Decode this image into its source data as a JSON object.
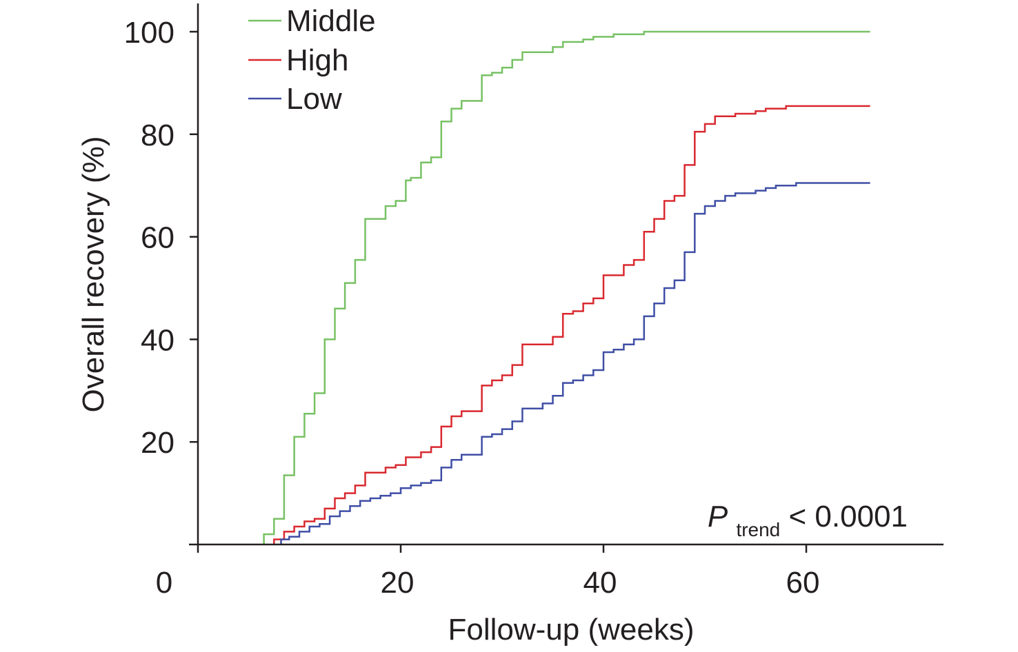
{
  "chart_data": {
    "type": "line",
    "step": true,
    "xlabel": "Follow-up (weeks)",
    "ylabel": "Overall recovery (%)",
    "xlim": [
      0,
      73
    ],
    "ylim": [
      0,
      105
    ],
    "x_ticks": [
      0,
      20,
      40,
      60
    ],
    "x_tick_labels": [
      "0",
      "20",
      "40",
      "60"
    ],
    "y_ticks": [
      20,
      40,
      60,
      80,
      100
    ],
    "y_tick_labels": [
      "20",
      "40",
      "60",
      "80",
      "100"
    ],
    "grid": false,
    "legend_position": "top-left",
    "annotation": {
      "main": "P",
      "sub": "trend",
      "tail": " < 0.0001"
    },
    "series": [
      {
        "name": "Middle",
        "color": "#77c163",
        "points": [
          [
            6.5,
            0
          ],
          [
            6.5,
            2
          ],
          [
            7.5,
            2
          ],
          [
            7.5,
            5
          ],
          [
            8.5,
            5
          ],
          [
            8.5,
            13.5
          ],
          [
            9.5,
            13.5
          ],
          [
            9.5,
            21
          ],
          [
            10.5,
            21
          ],
          [
            10.5,
            25.5
          ],
          [
            11.5,
            25.5
          ],
          [
            11.5,
            29.5
          ],
          [
            12.5,
            29.5
          ],
          [
            12.5,
            40
          ],
          [
            13.5,
            40
          ],
          [
            13.5,
            46
          ],
          [
            14.5,
            46
          ],
          [
            14.5,
            51
          ],
          [
            15.5,
            51
          ],
          [
            15.5,
            55.5
          ],
          [
            16.5,
            55.5
          ],
          [
            16.5,
            63.5
          ],
          [
            18.5,
            63.5
          ],
          [
            18.5,
            66
          ],
          [
            19.5,
            66
          ],
          [
            19.5,
            67
          ],
          [
            20.5,
            67
          ],
          [
            20.5,
            71
          ],
          [
            21,
            71
          ],
          [
            21,
            71.5
          ],
          [
            22,
            71.5
          ],
          [
            22,
            74.5
          ],
          [
            23,
            74.5
          ],
          [
            23,
            75.5
          ],
          [
            24,
            75.5
          ],
          [
            24,
            82.5
          ],
          [
            25,
            82.5
          ],
          [
            25,
            85
          ],
          [
            26,
            85
          ],
          [
            26,
            86.5
          ],
          [
            28,
            86.5
          ],
          [
            28,
            91.5
          ],
          [
            29,
            91.5
          ],
          [
            29,
            92
          ],
          [
            30,
            92
          ],
          [
            30,
            93
          ],
          [
            31,
            93
          ],
          [
            31,
            94.5
          ],
          [
            32,
            94.5
          ],
          [
            32,
            96
          ],
          [
            35,
            96
          ],
          [
            35,
            97
          ],
          [
            36,
            97
          ],
          [
            36,
            98
          ],
          [
            38,
            98
          ],
          [
            38,
            98.5
          ],
          [
            39,
            98.5
          ],
          [
            39,
            99
          ],
          [
            41,
            99
          ],
          [
            41,
            99.5
          ],
          [
            44,
            99.5
          ],
          [
            44,
            100
          ],
          [
            66.3,
            100
          ]
        ]
      },
      {
        "name": "High",
        "color": "#d9282f",
        "points": [
          [
            7.5,
            0
          ],
          [
            7.5,
            1
          ],
          [
            8.5,
            1
          ],
          [
            8.5,
            2.5
          ],
          [
            9.5,
            2.5
          ],
          [
            9.5,
            3.5
          ],
          [
            10.5,
            3.5
          ],
          [
            10.5,
            4.5
          ],
          [
            11.5,
            4.5
          ],
          [
            11.5,
            5
          ],
          [
            12.5,
            5
          ],
          [
            12.5,
            7
          ],
          [
            13.5,
            7
          ],
          [
            13.5,
            9
          ],
          [
            14.5,
            9
          ],
          [
            14.5,
            10
          ],
          [
            15.5,
            10
          ],
          [
            15.5,
            11.5
          ],
          [
            16.5,
            11.5
          ],
          [
            16.5,
            14
          ],
          [
            18.5,
            14
          ],
          [
            18.5,
            15
          ],
          [
            19.5,
            15
          ],
          [
            19.5,
            15.5
          ],
          [
            20.5,
            15.5
          ],
          [
            20.5,
            17
          ],
          [
            22,
            17
          ],
          [
            22,
            18
          ],
          [
            23,
            18
          ],
          [
            23,
            19
          ],
          [
            24,
            19
          ],
          [
            24,
            23
          ],
          [
            25,
            23
          ],
          [
            25,
            25
          ],
          [
            26,
            25
          ],
          [
            26,
            26
          ],
          [
            28,
            26
          ],
          [
            28,
            31
          ],
          [
            29,
            31
          ],
          [
            29,
            32
          ],
          [
            30,
            32
          ],
          [
            30,
            33
          ],
          [
            31,
            33
          ],
          [
            31,
            35
          ],
          [
            32,
            35
          ],
          [
            32,
            39
          ],
          [
            35,
            39
          ],
          [
            35,
            40.5
          ],
          [
            36,
            40.5
          ],
          [
            36,
            45
          ],
          [
            37,
            45
          ],
          [
            37,
            45.5
          ],
          [
            38,
            45.5
          ],
          [
            38,
            47
          ],
          [
            39,
            47
          ],
          [
            39,
            48
          ],
          [
            40,
            48
          ],
          [
            40,
            52.5
          ],
          [
            42,
            52.5
          ],
          [
            42,
            54.5
          ],
          [
            43,
            54.5
          ],
          [
            43,
            55.5
          ],
          [
            44,
            55.5
          ],
          [
            44,
            61
          ],
          [
            45,
            61
          ],
          [
            45,
            63.5
          ],
          [
            46,
            63.5
          ],
          [
            46,
            67
          ],
          [
            47,
            67
          ],
          [
            47,
            68
          ],
          [
            48,
            68
          ],
          [
            48,
            74
          ],
          [
            49,
            74
          ],
          [
            49,
            80.5
          ],
          [
            50,
            80.5
          ],
          [
            50,
            82
          ],
          [
            51,
            82
          ],
          [
            51,
            83.5
          ],
          [
            53,
            83.5
          ],
          [
            53,
            84
          ],
          [
            55,
            84
          ],
          [
            55,
            84.5
          ],
          [
            56,
            84.5
          ],
          [
            56,
            85
          ],
          [
            58,
            85
          ],
          [
            58,
            85.5
          ],
          [
            66.3,
            85.5
          ]
        ]
      },
      {
        "name": "Low",
        "color": "#3f4ea5",
        "points": [
          [
            8.2,
            0
          ],
          [
            8.2,
            1
          ],
          [
            9,
            1
          ],
          [
            9,
            1.5
          ],
          [
            10,
            1.5
          ],
          [
            10,
            2.5
          ],
          [
            11,
            2.5
          ],
          [
            11,
            3.5
          ],
          [
            12,
            3.5
          ],
          [
            12,
            4
          ],
          [
            13,
            4
          ],
          [
            13,
            5.5
          ],
          [
            14,
            5.5
          ],
          [
            14,
            6.5
          ],
          [
            15,
            6.5
          ],
          [
            15,
            7.5
          ],
          [
            16,
            7.5
          ],
          [
            16,
            8.5
          ],
          [
            17,
            8.5
          ],
          [
            17,
            9
          ],
          [
            18,
            9
          ],
          [
            18,
            9.5
          ],
          [
            19,
            9.5
          ],
          [
            19,
            10
          ],
          [
            20,
            10
          ],
          [
            20,
            11
          ],
          [
            21,
            11
          ],
          [
            21,
            11.5
          ],
          [
            22,
            11.5
          ],
          [
            22,
            12
          ],
          [
            23,
            12
          ],
          [
            23,
            12.5
          ],
          [
            24,
            12.5
          ],
          [
            24,
            15
          ],
          [
            25,
            15
          ],
          [
            25,
            16.5
          ],
          [
            26,
            16.5
          ],
          [
            26,
            17.5
          ],
          [
            28,
            17.5
          ],
          [
            28,
            21
          ],
          [
            29,
            21
          ],
          [
            29,
            21.5
          ],
          [
            30,
            21.5
          ],
          [
            30,
            22.5
          ],
          [
            31,
            22.5
          ],
          [
            31,
            24
          ],
          [
            32,
            24
          ],
          [
            32,
            26.5
          ],
          [
            34,
            26.5
          ],
          [
            34,
            27.5
          ],
          [
            35,
            27.5
          ],
          [
            35,
            29
          ],
          [
            36,
            29
          ],
          [
            36,
            31.5
          ],
          [
            37,
            31.5
          ],
          [
            37,
            32
          ],
          [
            38,
            32
          ],
          [
            38,
            33
          ],
          [
            39,
            33
          ],
          [
            39,
            34
          ],
          [
            40,
            34
          ],
          [
            40,
            37.5
          ],
          [
            41,
            37.5
          ],
          [
            41,
            38
          ],
          [
            42,
            38
          ],
          [
            42,
            39
          ],
          [
            43,
            39
          ],
          [
            43,
            40
          ],
          [
            44,
            40
          ],
          [
            44,
            44.5
          ],
          [
            45,
            44.5
          ],
          [
            45,
            47
          ],
          [
            46,
            47
          ],
          [
            46,
            50
          ],
          [
            47,
            50
          ],
          [
            47,
            51.5
          ],
          [
            48,
            51.5
          ],
          [
            48,
            57
          ],
          [
            49,
            57
          ],
          [
            49,
            64.5
          ],
          [
            50,
            64.5
          ],
          [
            50,
            66
          ],
          [
            51,
            66
          ],
          [
            51,
            67
          ],
          [
            52,
            67
          ],
          [
            52,
            68
          ],
          [
            53,
            68
          ],
          [
            53,
            68.5
          ],
          [
            55,
            68.5
          ],
          [
            55,
            69
          ],
          [
            56,
            69
          ],
          [
            56,
            69.5
          ],
          [
            57,
            69.5
          ],
          [
            57,
            70
          ],
          [
            59,
            70
          ],
          [
            59,
            70.5
          ],
          [
            66.3,
            70.5
          ]
        ]
      }
    ],
    "legend_order": [
      "Middle",
      "High",
      "Low"
    ]
  }
}
